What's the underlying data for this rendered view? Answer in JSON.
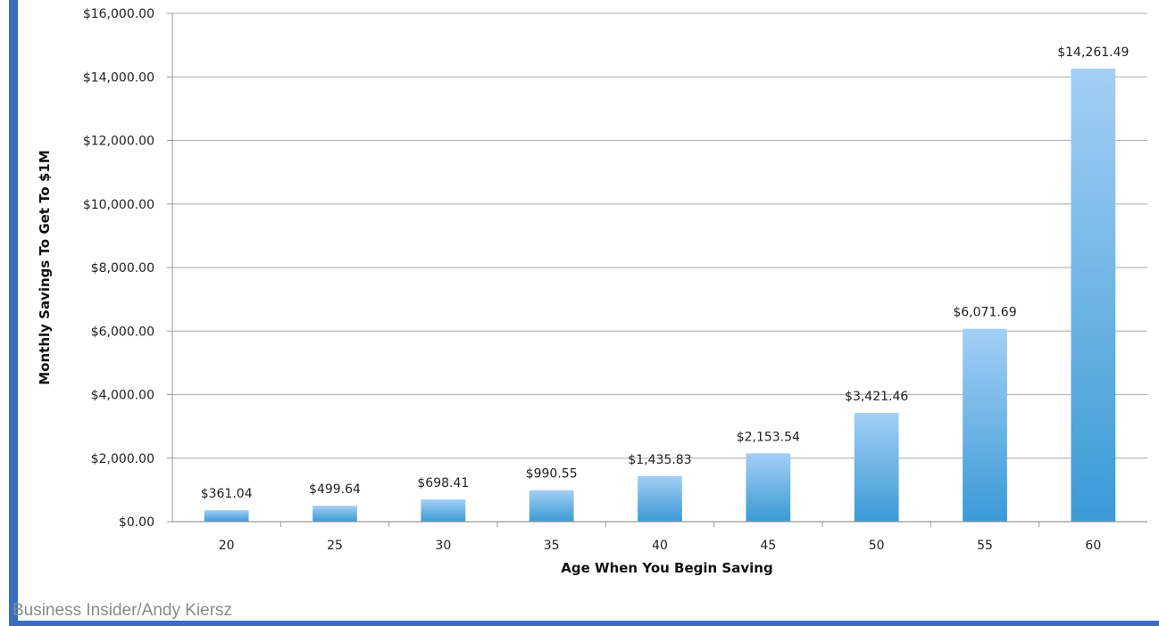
{
  "chart_data": {
    "type": "bar",
    "categories": [
      "20",
      "25",
      "30",
      "35",
      "40",
      "45",
      "50",
      "55",
      "60"
    ],
    "values": [
      361.04,
      499.64,
      698.41,
      990.55,
      1435.83,
      2153.54,
      3421.46,
      6071.69,
      14261.49
    ],
    "data_labels": [
      "$361.04",
      "$499.64",
      "$698.41",
      "$990.55",
      "$1,435.83",
      "$2,153.54",
      "$3,421.46",
      "$6,071.69",
      "$14,261.49"
    ],
    "xlabel": "Age When You Begin Saving",
    "ylabel": "Monthly Savings To Get To $1M",
    "ylim": [
      0,
      16000
    ],
    "yticks": [
      0,
      2000,
      4000,
      6000,
      8000,
      10000,
      12000,
      14000,
      16000
    ],
    "ytick_labels": [
      "$0.00",
      "$2,000.00",
      "$4,000.00",
      "$6,000.00",
      "$8,000.00",
      "$10,000.00",
      "$12,000.00",
      "$14,000.00",
      "$16,000.00"
    ],
    "grid": true,
    "legend": "none",
    "bar_color_top": "#a3cff5",
    "bar_color_bottom": "#3a9ad6"
  },
  "credit": "Business Insider/Andy Kiersz"
}
